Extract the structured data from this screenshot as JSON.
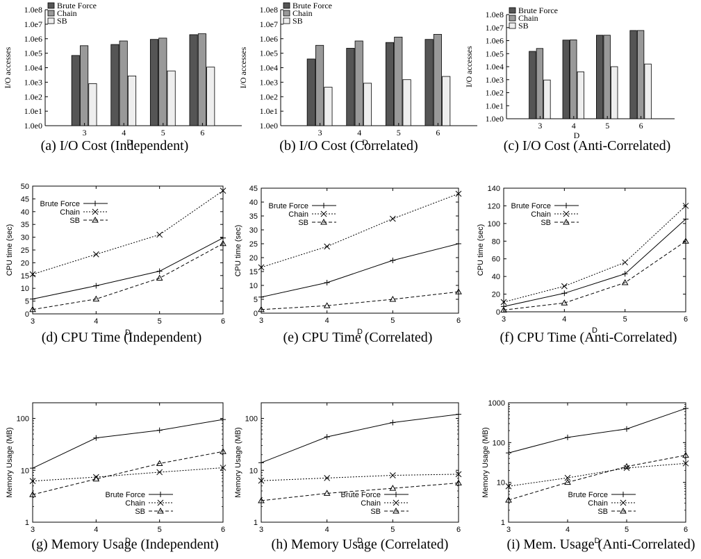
{
  "chart_data": [
    {
      "id": "a",
      "type": "bar",
      "caption": "(a) I/O Cost (Independent)",
      "xlabel": "D",
      "ylabel": "I/O accesses",
      "yscale": "log",
      "ylim": [
        1,
        100000000
      ],
      "ytick_labels": [
        "1.0e0",
        "1.0e1",
        "1.0e2",
        "1.0e3",
        "1.0e4",
        "1.0e5",
        "1.0e6",
        "1.0e7",
        "1.0e8"
      ],
      "categories": [
        "3",
        "4",
        "5",
        "6"
      ],
      "legend": "top-left",
      "series": [
        {
          "name": "Brute Force",
          "color": "#555555",
          "values": [
            70000,
            400000,
            900000,
            1900000
          ]
        },
        {
          "name": "Chain",
          "color": "#999999",
          "values": [
            330000,
            700000,
            1100000,
            2200000
          ]
        },
        {
          "name": "SB",
          "color": "#eeeeee",
          "values": [
            800,
            2700,
            6000,
            11000
          ]
        }
      ]
    },
    {
      "id": "b",
      "type": "bar",
      "caption": "(b) I/O Cost (Correlated)",
      "xlabel": "D",
      "ylabel": "I/O accesses",
      "yscale": "log",
      "ylim": [
        1,
        100000000
      ],
      "ytick_labels": [
        "1.0e0",
        "1.0e1",
        "1.0e2",
        "1.0e3",
        "1.0e4",
        "1.0e5",
        "1.0e6",
        "1.0e7",
        "1.0e8"
      ],
      "categories": [
        "3",
        "4",
        "5",
        "6"
      ],
      "legend": "top-left",
      "series": [
        {
          "name": "Brute Force",
          "color": "#555555",
          "values": [
            40000,
            220000,
            550000,
            900000
          ]
        },
        {
          "name": "Chain",
          "color": "#999999",
          "values": [
            350000,
            700000,
            1300000,
            2000000
          ]
        },
        {
          "name": "SB",
          "color": "#eeeeee",
          "values": [
            450,
            850,
            1500,
            2500
          ]
        }
      ]
    },
    {
      "id": "c",
      "type": "bar",
      "caption": "(c) I/O Cost (Anti-Correlated)",
      "xlabel": "D",
      "ylabel": "I/O accesses",
      "yscale": "log",
      "ylim": [
        1,
        100000000
      ],
      "ytick_labels": [
        "1.0e0",
        "1.0e1",
        "1.0e2",
        "1.0e3",
        "1.0e4",
        "1.0e5",
        "1.0e6",
        "1.0e7",
        "1.0e8"
      ],
      "categories": [
        "3",
        "4",
        "5",
        "6"
      ],
      "legend": "top-left",
      "series": [
        {
          "name": "Brute Force",
          "color": "#555555",
          "values": [
            150000,
            1100000,
            2600000,
            6000000
          ]
        },
        {
          "name": "Chain",
          "color": "#999999",
          "values": [
            250000,
            1150000,
            2600000,
            6000000
          ]
        },
        {
          "name": "SB",
          "color": "#eeeeee",
          "values": [
            950,
            4000,
            10000,
            16000
          ]
        }
      ]
    },
    {
      "id": "d",
      "type": "line",
      "caption": "(d) CPU Time (Independent)",
      "xlabel": "D",
      "ylabel": "CPU time (sec)",
      "yscale": "linear",
      "xlim": [
        3,
        6
      ],
      "ylim": [
        0,
        50
      ],
      "x": [
        3,
        4,
        5,
        6
      ],
      "yticks": [
        0,
        5,
        10,
        15,
        20,
        25,
        30,
        35,
        40,
        45,
        50
      ],
      "legend": "top-left",
      "series": [
        {
          "name": "Brute Force",
          "marker": "plus",
          "dash": "",
          "values": [
            5.8,
            11,
            16.7,
            29.7
          ]
        },
        {
          "name": "Chain",
          "marker": "cross",
          "dash": "2,2",
          "values": [
            15.5,
            23.3,
            31,
            48.2
          ]
        },
        {
          "name": "SB",
          "marker": "triangle",
          "dash": "5,3",
          "values": [
            1.7,
            5.8,
            14,
            27.5
          ]
        }
      ]
    },
    {
      "id": "e",
      "type": "line",
      "caption": "(e) CPU Time (Correlated)",
      "xlabel": "D",
      "ylabel": "CPU time (sec)",
      "yscale": "linear",
      "xlim": [
        3,
        6
      ],
      "ylim": [
        0,
        45
      ],
      "x": [
        3,
        4,
        5,
        6
      ],
      "yticks": [
        0,
        5,
        10,
        15,
        20,
        25,
        30,
        35,
        40,
        45
      ],
      "legend": "top-left",
      "series": [
        {
          "name": "Brute Force",
          "marker": "plus",
          "dash": "",
          "values": [
            5.8,
            11,
            19,
            25
          ]
        },
        {
          "name": "Chain",
          "marker": "cross",
          "dash": "2,2",
          "values": [
            16.5,
            24,
            34,
            43
          ]
        },
        {
          "name": "SB",
          "marker": "triangle",
          "dash": "5,3",
          "values": [
            1.3,
            2.7,
            5,
            7.7
          ]
        }
      ]
    },
    {
      "id": "f",
      "type": "line",
      "caption": "(f) CPU Time (Anti-Correlated)",
      "xlabel": "D",
      "ylabel": "CPU time (sec)",
      "yscale": "linear",
      "xlim": [
        3,
        6
      ],
      "ylim": [
        0,
        140
      ],
      "x": [
        3,
        4,
        5,
        6
      ],
      "yticks": [
        0,
        20,
        40,
        60,
        80,
        100,
        120,
        140
      ],
      "legend": "top-left",
      "series": [
        {
          "name": "Brute Force",
          "marker": "plus",
          "dash": "",
          "values": [
            6,
            21,
            43,
            105
          ]
        },
        {
          "name": "Chain",
          "marker": "cross",
          "dash": "2,2",
          "values": [
            11,
            29,
            56,
            120
          ]
        },
        {
          "name": "SB",
          "marker": "triangle",
          "dash": "5,3",
          "values": [
            2,
            10,
            33,
            80
          ]
        }
      ]
    },
    {
      "id": "g",
      "type": "line",
      "caption": "(g) Memory Usage (Independent)",
      "xlabel": "D",
      "ylabel": "Memory Usage (MB)",
      "yscale": "log",
      "xlim": [
        3,
        6
      ],
      "ylim": [
        1,
        200
      ],
      "x": [
        3,
        4,
        5,
        6
      ],
      "yticks": [
        1,
        10,
        100
      ],
      "legend": "bottom-right",
      "series": [
        {
          "name": "Brute Force",
          "marker": "plus",
          "dash": "",
          "values": [
            11,
            42,
            59,
            95
          ]
        },
        {
          "name": "Chain",
          "marker": "cross",
          "dash": "2,2",
          "values": [
            6.2,
            7.4,
            9.2,
            11.2
          ]
        },
        {
          "name": "SB",
          "marker": "triangle",
          "dash": "5,3",
          "values": [
            3.4,
            6.8,
            13.5,
            23
          ]
        }
      ]
    },
    {
      "id": "h",
      "type": "line",
      "caption": "(h) Memory Usage (Correlated)",
      "xlabel": "D",
      "ylabel": "Memory Usage (MB)",
      "yscale": "log",
      "xlim": [
        3,
        6
      ],
      "ylim": [
        1,
        200
      ],
      "x": [
        3,
        4,
        5,
        6
      ],
      "yticks": [
        1,
        10,
        100
      ],
      "legend": "bottom-right",
      "series": [
        {
          "name": "Brute Force",
          "marker": "plus",
          "dash": "",
          "values": [
            14,
            44,
            83,
            120
          ]
        },
        {
          "name": "Chain",
          "marker": "cross",
          "dash": "2,2",
          "values": [
            6.3,
            7.1,
            8,
            8.4
          ]
        },
        {
          "name": "SB",
          "marker": "triangle",
          "dash": "5,3",
          "values": [
            2.6,
            3.6,
            4.5,
            5.7
          ]
        }
      ]
    },
    {
      "id": "i",
      "type": "line",
      "caption": "(i) Mem. Usage (Anti-Correlated)",
      "xlabel": "D",
      "ylabel": "Memory Usage (MB)",
      "yscale": "log",
      "xlim": [
        3,
        6
      ],
      "ylim": [
        1,
        1000
      ],
      "x": [
        3,
        4,
        5,
        6
      ],
      "yticks": [
        1,
        10,
        100,
        1000
      ],
      "legend": "bottom-right",
      "series": [
        {
          "name": "Brute Force",
          "marker": "plus",
          "dash": "",
          "values": [
            55,
            135,
            220,
            720
          ]
        },
        {
          "name": "Chain",
          "marker": "cross",
          "dash": "2,2",
          "values": [
            8,
            13,
            23,
            30
          ]
        },
        {
          "name": "SB",
          "marker": "triangle",
          "dash": "5,3",
          "values": [
            3.6,
            10,
            25,
            48
          ]
        }
      ]
    }
  ]
}
